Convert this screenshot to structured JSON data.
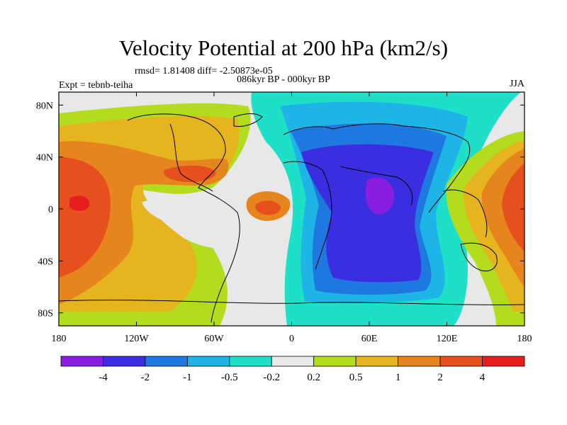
{
  "chart_data": {
    "type": "heatmap",
    "title": "Velocity Potential at 200 hPa (km2/s)",
    "stats": "rmsd= 1.81408  diff= -2.50873e-05",
    "left_label": "Expt = tebnb-teiha",
    "center_label": "086kyr BP - 000kyr BP",
    "right_label": "JJA",
    "x_ticks": [
      "180",
      "120W",
      "60W",
      "0",
      "60E",
      "120E",
      "180"
    ],
    "y_ticks": [
      "80N",
      "40N",
      "0",
      "40S",
      "80S"
    ],
    "colorbar_labels": [
      "-4",
      "-2",
      "-1",
      "-0.5",
      "-0.2",
      "0.2",
      "0.5",
      "1",
      "2",
      "4"
    ],
    "colorbar_colors": [
      "#8a1ee0",
      "#3a2ee0",
      "#1e78e0",
      "#1eb4e6",
      "#1ee0c8",
      "#e8e8e8",
      "#b4dc1e",
      "#e6b41e",
      "#e6841e",
      "#e6501e",
      "#e61e1e"
    ],
    "xlim": [
      -180,
      180
    ],
    "ylim": [
      -90,
      90
    ]
  }
}
